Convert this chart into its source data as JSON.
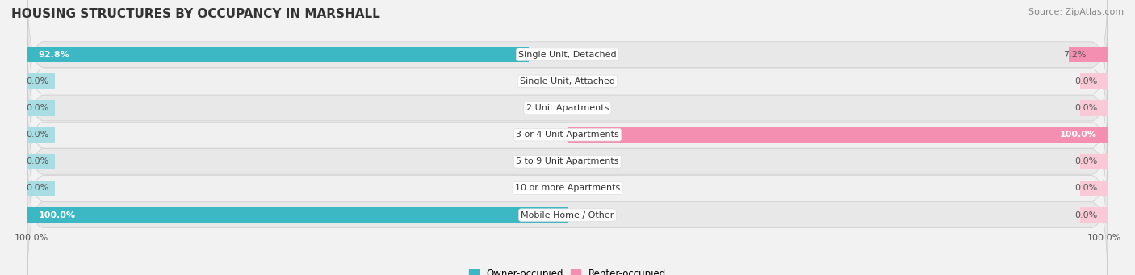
{
  "title": "HOUSING STRUCTURES BY OCCUPANCY IN MARSHALL",
  "source": "Source: ZipAtlas.com",
  "categories": [
    "Single Unit, Detached",
    "Single Unit, Attached",
    "2 Unit Apartments",
    "3 or 4 Unit Apartments",
    "5 to 9 Unit Apartments",
    "10 or more Apartments",
    "Mobile Home / Other"
  ],
  "owner_values": [
    92.8,
    0.0,
    0.0,
    0.0,
    0.0,
    0.0,
    100.0
  ],
  "renter_values": [
    7.2,
    0.0,
    0.0,
    100.0,
    0.0,
    0.0,
    0.0
  ],
  "owner_color": "#3bb8c3",
  "renter_color": "#f48fb1",
  "owner_stub_color": "#a8dde3",
  "renter_stub_color": "#f9c9d8",
  "owner_label": "Owner-occupied",
  "renter_label": "Renter-occupied",
  "bar_height": 0.58,
  "stub_value": 5.0,
  "bg_color": "#f2f2f2",
  "row_bg_light": "#f7f7f7",
  "row_bg_dark": "#e8e8e8",
  "label_left_pct": "100.0%",
  "label_right_pct": "100.0%",
  "title_fontsize": 11,
  "source_fontsize": 8,
  "tick_fontsize": 8,
  "bar_label_fontsize": 8,
  "category_fontsize": 8,
  "xlim_left": -100,
  "xlim_right": 100
}
